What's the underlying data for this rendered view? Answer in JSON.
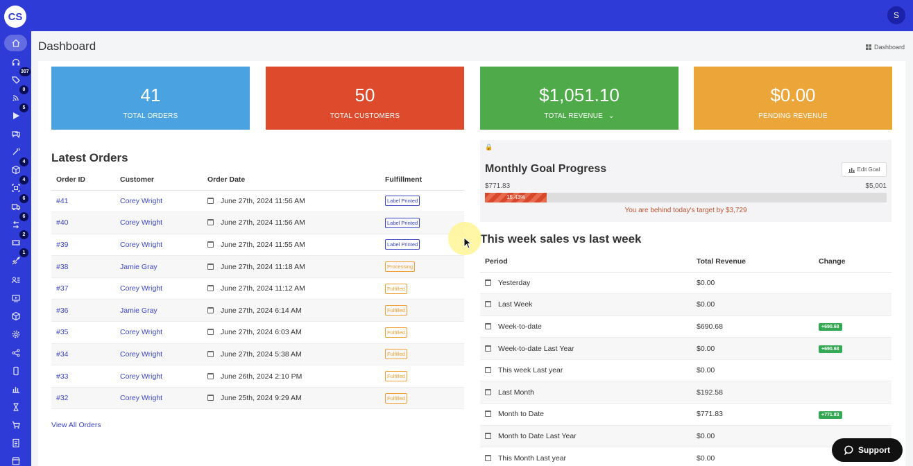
{
  "app": {
    "logo_text": "CS",
    "user_initial": "S"
  },
  "sidebar": {
    "items": [
      {
        "icon": "home-icon",
        "badge": "",
        "active": true
      },
      {
        "icon": "headset-icon",
        "badge": ""
      },
      {
        "icon": "tag-icon",
        "badge": "307"
      },
      {
        "icon": "rss-icon",
        "badge": "0"
      },
      {
        "icon": "play-icon",
        "badge": "5"
      },
      {
        "icon": "chat-icon",
        "badge": ""
      },
      {
        "icon": "magic-wand-icon",
        "badge": ""
      },
      {
        "icon": "cube-icon",
        "badge": "4"
      },
      {
        "icon": "scan-icon",
        "badge": "4"
      },
      {
        "icon": "truck-icon",
        "badge": "6"
      },
      {
        "icon": "return-icon",
        "badge": "6"
      },
      {
        "icon": "ticket-icon",
        "badge": "2"
      },
      {
        "icon": "rocket-icon",
        "badge": "1"
      },
      {
        "icon": "user-list-icon",
        "badge": ""
      },
      {
        "icon": "video-icon",
        "badge": ""
      },
      {
        "icon": "box-icon",
        "badge": ""
      },
      {
        "icon": "gear-icon",
        "badge": ""
      },
      {
        "icon": "share-icon",
        "badge": ""
      },
      {
        "icon": "mobile-icon",
        "badge": ""
      },
      {
        "icon": "bar-chart-icon",
        "badge": ""
      },
      {
        "icon": "hourglass-icon",
        "badge": ""
      },
      {
        "icon": "cart-icon",
        "badge": ""
      },
      {
        "icon": "document-icon",
        "badge": ""
      },
      {
        "icon": "store-icon",
        "badge": ""
      }
    ]
  },
  "header": {
    "title": "Dashboard",
    "breadcrumb": "Dashboard"
  },
  "stats": [
    {
      "value": "41",
      "label": "Total Orders",
      "color": "#4aa3e0"
    },
    {
      "value": "50",
      "label": "Total Customers",
      "color": "#de4a2c"
    },
    {
      "value": "$1,051.10",
      "label": "Total Revenue",
      "color": "#4fab4a"
    },
    {
      "value": "$0.00",
      "label": "Pending Revenue",
      "color": "#eca539"
    }
  ],
  "latest_orders": {
    "title": "Latest Orders",
    "columns": [
      "Order ID",
      "Customer",
      "Order Date",
      "Fulfillment"
    ],
    "rows": [
      {
        "id": "#41",
        "customer": "Corey Wright",
        "date": "June 27th, 2024 11:56 AM",
        "status": "Label Printed"
      },
      {
        "id": "#40",
        "customer": "Corey Wright",
        "date": "June 27th, 2024 11:56 AM",
        "status": "Label Printed"
      },
      {
        "id": "#39",
        "customer": "Corey Wright",
        "date": "June 27th, 2024 11:55 AM",
        "status": "Label Printed"
      },
      {
        "id": "#38",
        "customer": "Jamie Gray",
        "date": "June 27th, 2024 11:18 AM",
        "status": "Processing"
      },
      {
        "id": "#37",
        "customer": "Corey Wright",
        "date": "June 27th, 2024 11:12 AM",
        "status": "Fulfilled"
      },
      {
        "id": "#36",
        "customer": "Jamie Gray",
        "date": "June 27th, 2024 6:14 AM",
        "status": "Fulfilled"
      },
      {
        "id": "#35",
        "customer": "Corey Wright",
        "date": "June 27th, 2024 6:03 AM",
        "status": "Fulfilled"
      },
      {
        "id": "#34",
        "customer": "Corey Wright",
        "date": "June 27th, 2024 5:38 AM",
        "status": "Fulfilled"
      },
      {
        "id": "#33",
        "customer": "Corey Wright",
        "date": "June 26th, 2024 2:10 PM",
        "status": "Fulfilled"
      },
      {
        "id": "#32",
        "customer": "Corey Wright",
        "date": "June 25th, 2024 9:29 AM",
        "status": "Fulfilled"
      }
    ],
    "view_all": "View All Orders"
  },
  "goal": {
    "title": "Monthly Goal Progress",
    "edit_label": "Edit Goal",
    "current": "$771.83",
    "target": "$5,001",
    "percent_label": "15.43%",
    "percent": 15.43,
    "message": "You are behind today's target by $3,729"
  },
  "weekly_sales": {
    "title": "This week sales vs last week",
    "columns": [
      "Period",
      "Total Revenue",
      "Change"
    ],
    "rows": [
      {
        "period": "Yesterday",
        "revenue": "$0.00",
        "change": ""
      },
      {
        "period": "Last Week",
        "revenue": "$0.00",
        "change": ""
      },
      {
        "period": "Week-to-date",
        "revenue": "$690.68",
        "change": "+690.68"
      },
      {
        "period": "Week-to-date Last Year",
        "revenue": "$0.00",
        "change": "+690.68"
      },
      {
        "period": "This week Last year",
        "revenue": "$0.00",
        "change": ""
      },
      {
        "period": "Last Month",
        "revenue": "$192.58",
        "change": ""
      },
      {
        "period": "Month to Date",
        "revenue": "$771.83",
        "change": "+771.83"
      },
      {
        "period": "Month to Date Last Year",
        "revenue": "$0.00",
        "change": ""
      },
      {
        "period": "This Month Last year",
        "revenue": "$0.00",
        "change": ""
      }
    ]
  },
  "support": {
    "label": "Support"
  }
}
